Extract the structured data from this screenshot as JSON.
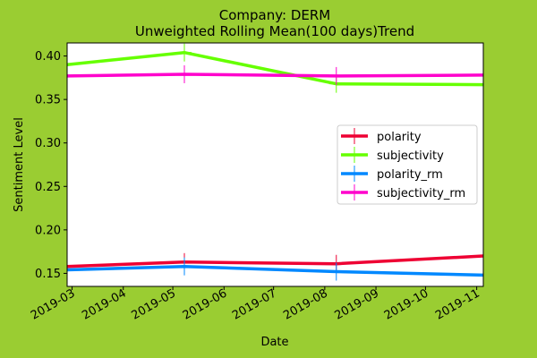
{
  "chart_data": {
    "type": "line",
    "title_line1": "Company: DERM",
    "title_line2": "Unweighted Rolling Mean(100 days)Trend",
    "xlabel": "Date",
    "ylabel": "Sentiment Level",
    "xlim": [
      "2019-02-26",
      "2019-11-05"
    ],
    "ylim": [
      0.135,
      0.415
    ],
    "x_ticks": [
      "2019-03",
      "2019-04",
      "2019-05",
      "2019-06",
      "2019-07",
      "2019-08",
      "2019-09",
      "2019-10",
      "2019-11"
    ],
    "y_ticks": [
      0.15,
      0.2,
      0.25,
      0.3,
      0.35,
      0.4
    ],
    "y_tick_labels": [
      "0.15",
      "0.20",
      "0.25",
      "0.30",
      "0.35",
      "0.40"
    ],
    "grid": false,
    "legend_position": "center-right",
    "series": [
      {
        "name": "polarity",
        "color": "#ee0033",
        "x": [
          "2019-02-26",
          "2019-05-08",
          "2019-08-08",
          "2019-11-05"
        ],
        "y": [
          0.158,
          0.163,
          0.161,
          0.17
        ],
        "markers": [
          1,
          2
        ]
      },
      {
        "name": "subjectivity",
        "color": "#66ff00",
        "x": [
          "2019-02-26",
          "2019-05-08",
          "2019-08-08",
          "2019-11-05"
        ],
        "y": [
          0.39,
          0.404,
          0.368,
          0.367
        ],
        "markers": [
          1,
          2
        ]
      },
      {
        "name": "polarity_rm",
        "color": "#0088ff",
        "x": [
          "2019-02-26",
          "2019-05-08",
          "2019-08-08",
          "2019-11-05"
        ],
        "y": [
          0.154,
          0.158,
          0.152,
          0.148
        ],
        "markers": [
          1,
          2
        ]
      },
      {
        "name": "subjectivity_rm",
        "color": "#ff00cc",
        "x": [
          "2019-02-26",
          "2019-05-08",
          "2019-08-08",
          "2019-11-05"
        ],
        "y": [
          0.377,
          0.379,
          0.377,
          0.378
        ],
        "markers": [
          1,
          2
        ]
      }
    ]
  }
}
